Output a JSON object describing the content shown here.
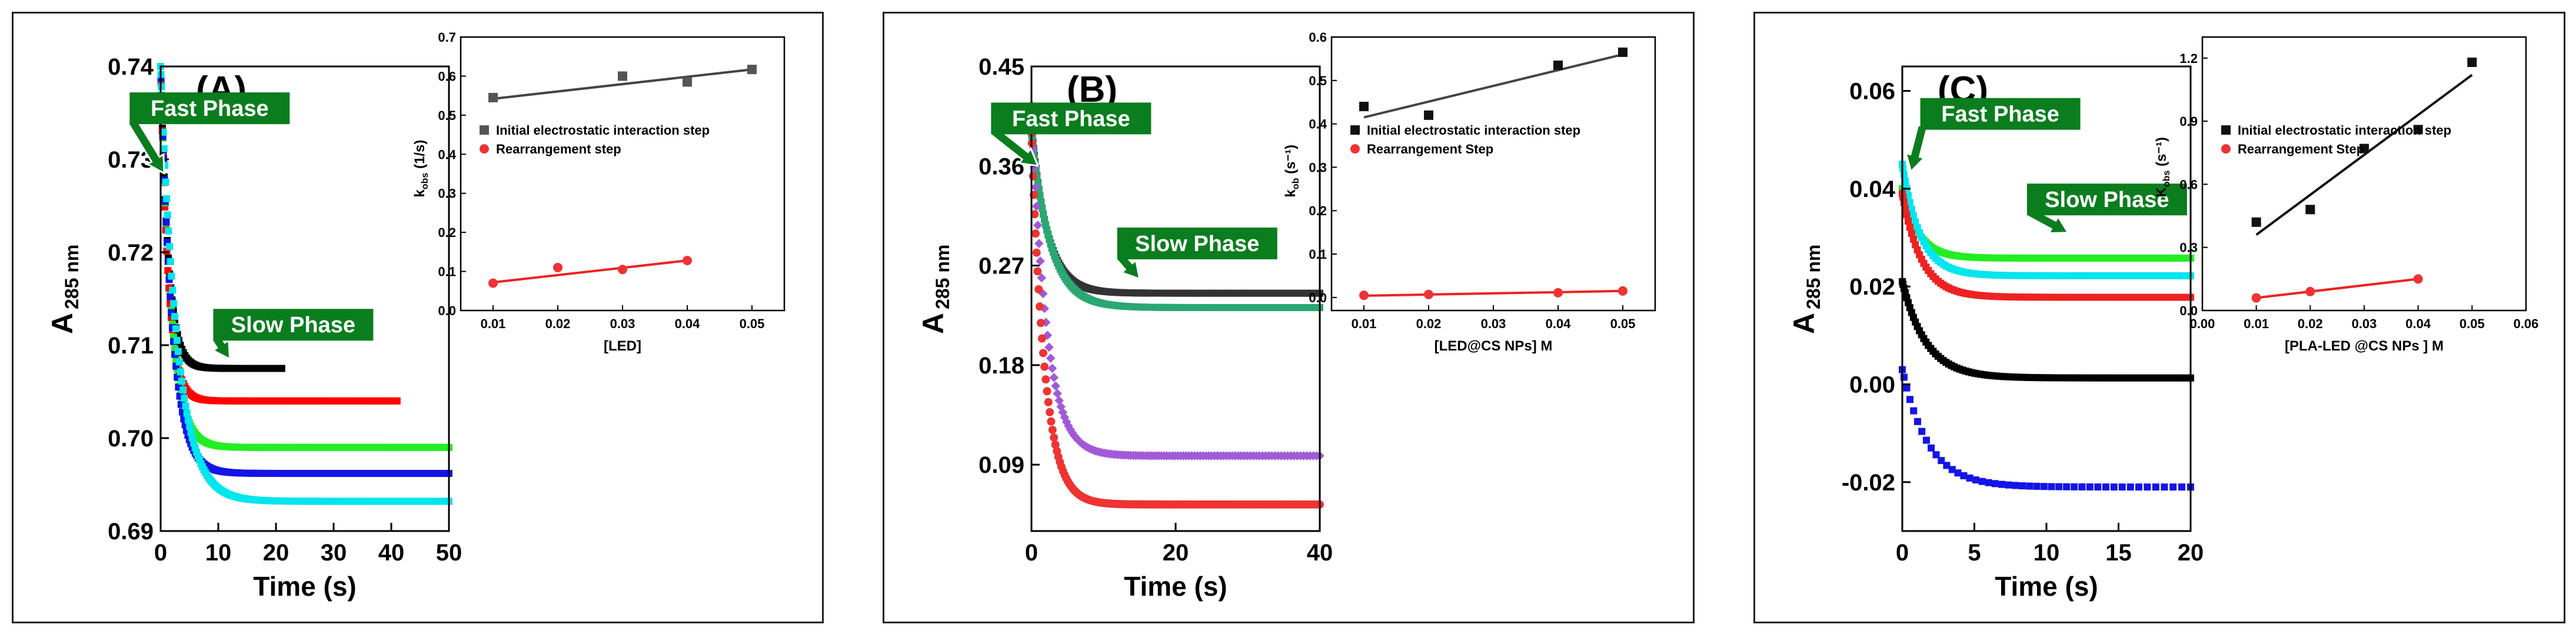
{
  "panels": [
    {
      "label": "(A)",
      "main": {
        "xlabel": "Time (s)",
        "ylabel": "A",
        "ylabel_sub": "285 nm",
        "xlim": [
          0,
          50
        ],
        "ylim": [
          0.69,
          0.74
        ],
        "xticks": [
          "0",
          "10",
          "20",
          "30",
          "40",
          "50"
        ],
        "yticks": [
          "0.69",
          "0.70",
          "0.71",
          "0.72",
          "0.73",
          "0.74"
        ],
        "xtick_values": [
          0,
          10,
          20,
          30,
          40,
          50
        ],
        "ytick_values": [
          0.69,
          0.7,
          0.71,
          0.72,
          0.73,
          0.74
        ],
        "series": [
          {
            "color": "#000000",
            "start": 0.74,
            "end": 0.7075,
            "k": 0.75,
            "tmax": 21,
            "n": 70,
            "marker": "square"
          },
          {
            "color": "#ff0000",
            "start": 0.74,
            "end": 0.704,
            "k": 0.75,
            "tmax": 41,
            "n": 120,
            "marker": "square"
          },
          {
            "color": "#22ee22",
            "start": 0.74,
            "end": 0.699,
            "k": 0.55,
            "tmax": 50,
            "n": 150,
            "marker": "square"
          },
          {
            "color": "#1414e6",
            "start": 0.74,
            "end": 0.6962,
            "k": 0.5,
            "tmax": 50,
            "n": 150,
            "marker": "square"
          },
          {
            "color": "#00e5ee",
            "start": 0.74,
            "end": 0.6932,
            "k": 0.35,
            "tmax": 50,
            "n": 160,
            "marker": "square"
          }
        ],
        "annotations": [
          {
            "text": "Fast Phase",
            "x": 8.5,
            "y": 0.7355,
            "tip_x": 0.6,
            "tip_y": 0.7285
          },
          {
            "text": "Slow Phase",
            "x": 23,
            "y": 0.7122,
            "tip_x": 12,
            "tip_y": 0.7085
          }
        ]
      },
      "inset": {
        "xlabel": "[LED]",
        "ylabel": "k",
        "ylabel_sub": "obs",
        "ylabel_suffix": " (1/s)",
        "xlim": [
          0.005,
          0.055
        ],
        "ylim": [
          0.0,
          0.7
        ],
        "xticks": [
          "0.01",
          "0.02",
          "0.03",
          "0.04",
          "0.05"
        ],
        "xtick_values": [
          0.01,
          0.02,
          0.03,
          0.04,
          0.05
        ],
        "yticks": [
          "0.0",
          "0.1",
          "0.2",
          "0.3",
          "0.4",
          "0.5",
          "0.6",
          "0.7"
        ],
        "ytick_values": [
          0.0,
          0.1,
          0.2,
          0.3,
          0.4,
          0.5,
          0.6,
          0.7
        ],
        "series": [
          {
            "name": "Initial electrostatic interaction step",
            "color": "#555555",
            "line_color": "#444444",
            "marker": "square",
            "x": [
              0.01,
              0.03,
              0.04,
              0.05
            ],
            "y": [
              0.545,
              0.6,
              0.585,
              0.617
            ],
            "fit": [
              0.542,
              0.617
            ]
          },
          {
            "name": "Rearrangement step",
            "color": "#ee3333",
            "line_color": "#ee2222",
            "marker": "circle",
            "x": [
              0.01,
              0.02,
              0.03,
              0.04
            ],
            "y": [
              0.07,
              0.11,
              0.105,
              0.128
            ],
            "fit": [
              0.072,
              0.128
            ]
          }
        ],
        "fit_range": [
          0.01,
          0.05
        ],
        "fit_range_red": [
          0.01,
          0.04
        ]
      }
    },
    {
      "label": "(B)",
      "main": {
        "xlabel": "Time (s)",
        "ylabel": "A",
        "ylabel_sub": "285 nm",
        "xlim": [
          0,
          40
        ],
        "ylim": [
          0.03,
          0.45
        ],
        "xticks": [
          "0",
          "20",
          "40"
        ],
        "xtick_values": [
          0,
          20,
          40
        ],
        "yticks": [
          "0.09",
          "0.18",
          "0.27",
          "0.36",
          "0.45"
        ],
        "ytick_values": [
          0.09,
          0.18,
          0.27,
          0.36,
          0.45
        ],
        "series": [
          {
            "color": "#333333",
            "start": 0.395,
            "end": 0.245,
            "k": 0.45,
            "tmax": 40,
            "n": 150,
            "marker": "square"
          },
          {
            "color": "#2aa872",
            "start": 0.39,
            "end": 0.232,
            "k": 0.38,
            "tmax": 40,
            "n": 150,
            "marker": "square"
          },
          {
            "color": "#a05ad8",
            "start": 0.415,
            "end": 0.098,
            "k": 0.48,
            "tmax": 40,
            "n": 120,
            "marker": "diamond"
          },
          {
            "color": "#ee3333",
            "start": 0.39,
            "end": 0.054,
            "k": 0.55,
            "tmax": 40,
            "n": 140,
            "marker": "circle"
          }
        ],
        "annotations": [
          {
            "text": "Fast Phase",
            "x": 5.5,
            "y": 0.403,
            "tip_x": 0.9,
            "tip_y": 0.36
          },
          {
            "text": "Slow Phase",
            "x": 23,
            "y": 0.29,
            "tip_x": 15,
            "tip_y": 0.258
          }
        ]
      },
      "inset": {
        "xlabel": "[LED@CS NPs] M",
        "ylabel": "k",
        "ylabel_sub": "ob",
        "ylabel_suffix": " (s⁻¹)",
        "xlim": [
          0.005,
          0.055
        ],
        "ylim": [
          -0.03,
          0.6
        ],
        "xticks": [
          "0.01",
          "0.02",
          "0.03",
          "0.04",
          "0.05"
        ],
        "xtick_values": [
          0.01,
          0.02,
          0.03,
          0.04,
          0.05
        ],
        "yticks": [
          "0.0",
          "0.1",
          "0.2",
          "0.3",
          "0.4",
          "0.5",
          "0.6"
        ],
        "ytick_values": [
          0.0,
          0.1,
          0.2,
          0.3,
          0.4,
          0.5,
          0.6
        ],
        "series": [
          {
            "name": "Initial electrostatic interaction step",
            "color": "#111111",
            "line_color": "#444444",
            "marker": "square",
            "x": [
              0.01,
              0.02,
              0.04,
              0.05
            ],
            "y": [
              0.44,
              0.42,
              0.535,
              0.565
            ],
            "fit": [
              0.415,
              0.56
            ]
          },
          {
            "name": "Rearrangement Step",
            "color": "#ee3333",
            "line_color": "#ee2222",
            "marker": "circle",
            "x": [
              0.01,
              0.02,
              0.04,
              0.05
            ],
            "y": [
              0.005,
              0.007,
              0.011,
              0.015
            ],
            "fit": [
              0.004,
              0.015
            ]
          }
        ],
        "fit_range": [
          0.01,
          0.05
        ],
        "fit_range_red": [
          0.01,
          0.05
        ]
      }
    },
    {
      "label": "(C)",
      "main": {
        "xlabel": "Time (s)",
        "ylabel": "A",
        "ylabel_sub": "285 nm",
        "xlim": [
          0,
          20
        ],
        "ylim": [
          -0.03,
          0.065
        ],
        "xticks": [
          "0",
          "5",
          "10",
          "15",
          "20"
        ],
        "xtick_values": [
          0,
          5,
          10,
          15,
          20
        ],
        "yticks": [
          "-0.02",
          "0.00",
          "0.02",
          "0.04",
          "0.06"
        ],
        "ytick_values": [
          -0.02,
          0.0,
          0.02,
          0.04,
          0.06
        ],
        "series": [
          {
            "color": "#22ee22",
            "start": 0.04,
            "end": 0.0258,
            "k": 0.9,
            "tmax": 20,
            "n": 90,
            "marker": "square"
          },
          {
            "color": "#00e5ee",
            "start": 0.045,
            "end": 0.0222,
            "k": 0.8,
            "tmax": 20,
            "n": 90,
            "marker": "square"
          },
          {
            "color": "#ee2222",
            "start": 0.039,
            "end": 0.0178,
            "k": 0.75,
            "tmax": 20,
            "n": 90,
            "marker": "square"
          },
          {
            "color": "#000000",
            "start": 0.021,
            "end": 0.0013,
            "k": 0.6,
            "tmax": 20,
            "n": 90,
            "marker": "square"
          },
          {
            "color": "#1414e6",
            "start": 0.003,
            "end": -0.021,
            "k": 0.55,
            "tmax": 20,
            "n": 45,
            "marker": "square"
          }
        ],
        "annotations": [
          {
            "text": "Fast Phase",
            "x": 6.8,
            "y": 0.0553,
            "tip_x": 0.6,
            "tip_y": 0.0435
          },
          {
            "text": "Slow Phase",
            "x": 14.2,
            "y": 0.0378,
            "tip_x": 11.5,
            "tip_y": 0.031
          }
        ]
      },
      "inset": {
        "xlabel": "[PLA-LED @CS NPs ] M",
        "ylabel": "K",
        "ylabel_sub": "obs",
        "ylabel_suffix": " (s⁻¹)",
        "xlim": [
          0.0,
          0.06
        ],
        "ylim": [
          0.0,
          1.3
        ],
        "xticks": [
          "0.00",
          "0.01",
          "0.02",
          "0.03",
          "0.04",
          "0.05",
          "0.06"
        ],
        "xtick_values": [
          0.0,
          0.01,
          0.02,
          0.03,
          0.04,
          0.05,
          0.06
        ],
        "yticks": [
          "0.0",
          "0.3",
          "0.6",
          "0.9",
          "1.2"
        ],
        "ytick_values": [
          0.0,
          0.3,
          0.6,
          0.9,
          1.2
        ],
        "series": [
          {
            "name": "Initial electrostatic interaction step",
            "color": "#111111",
            "line_color": "#111111",
            "marker": "square",
            "x": [
              0.01,
              0.02,
              0.03,
              0.04,
              0.05
            ],
            "y": [
              0.42,
              0.48,
              0.77,
              0.86,
              1.18
            ],
            "fit": [
              0.36,
              1.12
            ]
          },
          {
            "name": "Rearrangement Step",
            "color": "#ee3333",
            "line_color": "#ee2222",
            "marker": "circle",
            "x": [
              0.01,
              0.02,
              0.04
            ],
            "y": [
              0.06,
              0.09,
              0.15
            ],
            "fit": [
              0.06,
              0.15
            ]
          }
        ],
        "fit_range": [
          0.01,
          0.05
        ],
        "fit_range_red": [
          0.01,
          0.04
        ]
      }
    }
  ],
  "chart_data": [
    {
      "type": "scatter",
      "panel": "(A)",
      "xlabel": "Time (s)",
      "ylabel": "A 285 nm",
      "xlim": [
        0,
        50
      ],
      "ylim": [
        0.69,
        0.74
      ],
      "plateaus": [
        0.7075,
        0.704,
        0.699,
        0.6962,
        0.6932
      ],
      "inset": {
        "type": "scatter",
        "xlabel": "[LED]",
        "ylabel": "k obs (1/s)",
        "series": [
          {
            "name": "Initial electrostatic interaction step",
            "x": [
              0.01,
              0.03,
              0.04,
              0.05
            ],
            "y": [
              0.545,
              0.6,
              0.585,
              0.617
            ]
          },
          {
            "name": "Rearrangement step",
            "x": [
              0.01,
              0.02,
              0.03,
              0.04
            ],
            "y": [
              0.07,
              0.11,
              0.105,
              0.128
            ]
          }
        ]
      }
    },
    {
      "type": "scatter",
      "panel": "(B)",
      "xlabel": "Time (s)",
      "ylabel": "A 285 nm",
      "xlim": [
        0,
        40
      ],
      "ylim": [
        0.03,
        0.45
      ],
      "plateaus": [
        0.245,
        0.232,
        0.098,
        0.054
      ],
      "inset": {
        "type": "scatter",
        "xlabel": "[LED@CS NPs] M",
        "ylabel": "k ob (s-1)",
        "series": [
          {
            "name": "Initial electrostatic interaction step",
            "x": [
              0.01,
              0.02,
              0.04,
              0.05
            ],
            "y": [
              0.44,
              0.42,
              0.535,
              0.565
            ]
          },
          {
            "name": "Rearrangement Step",
            "x": [
              0.01,
              0.02,
              0.04,
              0.05
            ],
            "y": [
              0.005,
              0.007,
              0.011,
              0.015
            ]
          }
        ]
      }
    },
    {
      "type": "scatter",
      "panel": "(C)",
      "xlabel": "Time (s)",
      "ylabel": "A 285 nm",
      "xlim": [
        0,
        20
      ],
      "ylim": [
        -0.03,
        0.065
      ],
      "plateaus": [
        0.0258,
        0.0222,
        0.0178,
        0.0013,
        -0.021
      ],
      "inset": {
        "type": "scatter",
        "xlabel": "[PLA-LED @CS NPs ] M",
        "ylabel": "K obs (s-1)",
        "series": [
          {
            "name": "Initial electrostatic interaction step",
            "x": [
              0.01,
              0.02,
              0.03,
              0.04,
              0.05
            ],
            "y": [
              0.42,
              0.48,
              0.77,
              0.86,
              1.18
            ]
          },
          {
            "name": "Rearrangement Step",
            "x": [
              0.01,
              0.02,
              0.04
            ],
            "y": [
              0.06,
              0.09,
              0.15
            ]
          }
        ]
      }
    }
  ]
}
